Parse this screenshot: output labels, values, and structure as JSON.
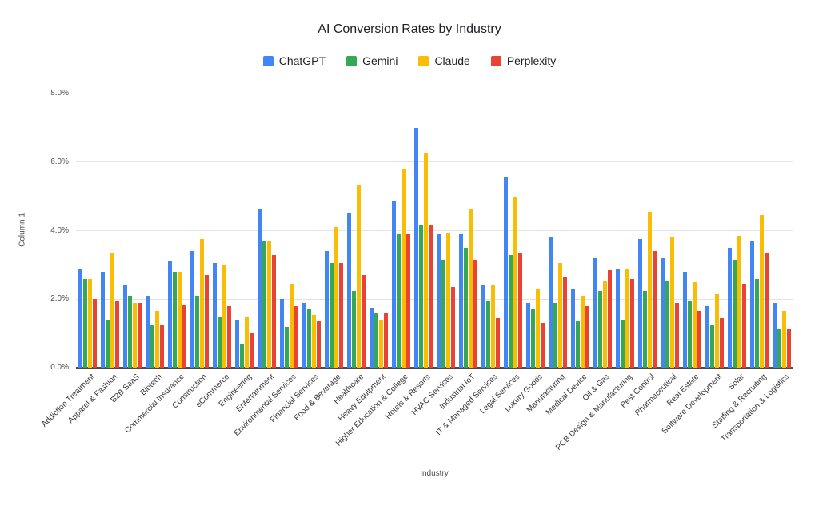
{
  "chart": {
    "title": "AI Conversion Rates by Industry",
    "x_axis_title": "Industry",
    "y_axis_title": "Column 1",
    "y_tick_labels": [
      "0.0%",
      "2.0%",
      "4.0%",
      "6.0%",
      "8.0%"
    ]
  },
  "chart_data": {
    "type": "bar",
    "title": "AI Conversion Rates by Industry",
    "xlabel": "Industry",
    "ylabel": "Column 1",
    "ylim": [
      0,
      8
    ],
    "y_ticks": [
      "0.0%",
      "2.0%",
      "4.0%",
      "6.0%",
      "8.0%"
    ],
    "grid": true,
    "legend_position": "top",
    "categories": [
      "Addiction Treatment",
      "Apparel & Fashion",
      "B2B SaaS",
      "Biotech",
      "Commercial Insurance",
      "Construction",
      "eCommerce",
      "Engineering",
      "Entertainment",
      "Environmental Services",
      "Financial Services",
      "Food & Beverage",
      "Healthcare",
      "Heavy Equipment",
      "Higher Education & College",
      "Hotels & Resorts",
      "HVAC Services",
      "Industrial IoT",
      "IT & Managed Services",
      "Legal Services",
      "Luxury Goods",
      "Manufacturing",
      "Medical Device",
      "Oil & Gas",
      "PCB Design & Manufacturing",
      "Pest Control",
      "Pharmaceutical",
      "Real Estate",
      "Software Development",
      "Solar",
      "Staffing & Recruiting",
      "Transportation & Logistics"
    ],
    "series": [
      {
        "name": "ChatGPT",
        "color": "#4285F4",
        "values": [
          2.9,
          2.8,
          2.4,
          2.1,
          3.1,
          3.4,
          3.05,
          1.4,
          4.65,
          2.0,
          1.9,
          3.4,
          4.5,
          1.75,
          4.85,
          7.0,
          3.9,
          3.9,
          2.4,
          5.55,
          1.9,
          3.8,
          2.3,
          3.2,
          2.9,
          3.75,
          3.2,
          2.8,
          1.8,
          3.5,
          3.7,
          1.9
        ]
      },
      {
        "name": "Gemini",
        "color": "#34A853",
        "values": [
          2.6,
          1.4,
          2.1,
          1.25,
          2.8,
          2.1,
          1.5,
          0.7,
          3.7,
          1.2,
          1.7,
          3.05,
          2.25,
          1.6,
          3.9,
          4.15,
          3.15,
          3.5,
          1.95,
          3.3,
          1.7,
          1.9,
          1.35,
          2.25,
          1.4,
          2.25,
          2.55,
          1.95,
          1.25,
          3.15,
          2.6,
          1.15
        ]
      },
      {
        "name": "Claude",
        "color": "#FBBC04",
        "values": [
          2.6,
          3.35,
          1.9,
          1.65,
          2.8,
          3.75,
          3.0,
          1.5,
          3.7,
          2.45,
          1.55,
          4.1,
          5.35,
          1.4,
          5.8,
          6.25,
          3.95,
          4.65,
          2.4,
          5.0,
          2.3,
          3.05,
          2.1,
          2.55,
          2.9,
          4.55,
          3.8,
          2.5,
          2.15,
          3.85,
          4.45,
          1.65
        ]
      },
      {
        "name": "Perplexity",
        "color": "#EA4335",
        "values": [
          2.0,
          1.95,
          1.9,
          1.25,
          1.85,
          2.7,
          1.8,
          1.0,
          3.3,
          1.8,
          1.35,
          3.05,
          2.7,
          1.6,
          3.9,
          4.15,
          2.35,
          3.15,
          1.45,
          3.35,
          1.3,
          2.65,
          1.8,
          2.85,
          2.6,
          3.4,
          1.9,
          1.65,
          1.45,
          2.45,
          3.35,
          1.15
        ]
      }
    ]
  }
}
